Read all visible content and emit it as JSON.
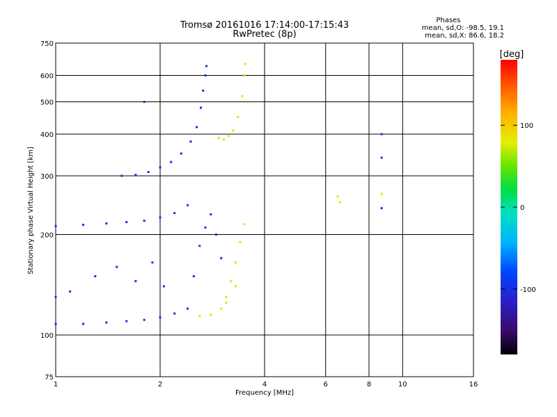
{
  "chart_data": {
    "type": "scatter",
    "title": "Tromsø 20161016 17:14:00-17:15:43",
    "subtitle": "RwPretec (8p)",
    "xlabel": "Frequency [MHz]",
    "ylabel": "Stationary phase Virtual Height [km]",
    "x_scale": "log",
    "y_scale": "log",
    "xlim": [
      1,
      16
    ],
    "ylim": [
      75,
      750
    ],
    "x_ticks": [
      1,
      2,
      4,
      6,
      8,
      10,
      16
    ],
    "x_tick_labels": [
      "1",
      "2",
      "4",
      "6",
      "8",
      "10",
      "16"
    ],
    "y_ticks": [
      75,
      100,
      200,
      300,
      400,
      500,
      600,
      750
    ],
    "y_tick_labels": [
      "75",
      "100",
      "200",
      "300",
      "400",
      "500",
      "600",
      "750"
    ],
    "grid": true,
    "phases_header": "Phases",
    "phases_line_o": "mean, sd,O: -98.5, 19.1",
    "phases_line_x": "mean, sd,X: 86.6, 18.2",
    "colorbar": {
      "label": "[deg]",
      "range": [
        -180,
        180
      ],
      "ticks": [
        100,
        0,
        -100
      ],
      "tick_labels": [
        "100",
        "0",
        "-100"
      ]
    },
    "series": [
      {
        "mode": "O",
        "phase_deg": -98.5,
        "points": [
          [
            1.0,
            130
          ],
          [
            1.1,
            135
          ],
          [
            1.3,
            150
          ],
          [
            1.5,
            160
          ],
          [
            1.7,
            145
          ],
          [
            1.9,
            165
          ],
          [
            2.05,
            140
          ],
          [
            1.0,
            108
          ],
          [
            1.2,
            108
          ],
          [
            1.4,
            109
          ],
          [
            1.6,
            110
          ],
          [
            1.8,
            111
          ],
          [
            2.0,
            113
          ],
          [
            2.2,
            116
          ],
          [
            1.0,
            212
          ],
          [
            1.2,
            214
          ],
          [
            1.4,
            216
          ],
          [
            1.6,
            218
          ],
          [
            1.8,
            220
          ],
          [
            2.0,
            225
          ],
          [
            2.2,
            232
          ],
          [
            2.4,
            245
          ],
          [
            1.55,
            300
          ],
          [
            1.7,
            302
          ],
          [
            1.85,
            308
          ],
          [
            2.0,
            318
          ],
          [
            2.15,
            330
          ],
          [
            2.3,
            350
          ],
          [
            2.45,
            380
          ],
          [
            2.55,
            420
          ],
          [
            2.62,
            480
          ],
          [
            2.66,
            540
          ],
          [
            2.7,
            600
          ],
          [
            2.72,
            640
          ],
          [
            2.4,
            120
          ],
          [
            2.5,
            150
          ],
          [
            2.6,
            185
          ],
          [
            2.7,
            210
          ],
          [
            2.8,
            230
          ],
          [
            2.9,
            200
          ],
          [
            3.0,
            170
          ],
          [
            1.8,
            500
          ],
          [
            8.7,
            400
          ],
          [
            8.7,
            340
          ],
          [
            8.7,
            240
          ]
        ]
      },
      {
        "mode": "X",
        "phase_deg": 86.6,
        "points": [
          [
            2.6,
            114
          ],
          [
            2.8,
            115
          ],
          [
            3.0,
            120
          ],
          [
            3.1,
            130
          ],
          [
            3.2,
            145
          ],
          [
            3.3,
            165
          ],
          [
            3.4,
            190
          ],
          [
            3.5,
            215
          ],
          [
            2.95,
            390
          ],
          [
            3.05,
            385
          ],
          [
            3.15,
            395
          ],
          [
            3.25,
            410
          ],
          [
            3.35,
            450
          ],
          [
            3.45,
            520
          ],
          [
            3.5,
            600
          ],
          [
            3.52,
            650
          ],
          [
            3.3,
            140
          ],
          [
            3.1,
            125
          ],
          [
            6.5,
            260
          ],
          [
            6.6,
            250
          ],
          [
            8.7,
            265
          ]
        ]
      }
    ]
  }
}
